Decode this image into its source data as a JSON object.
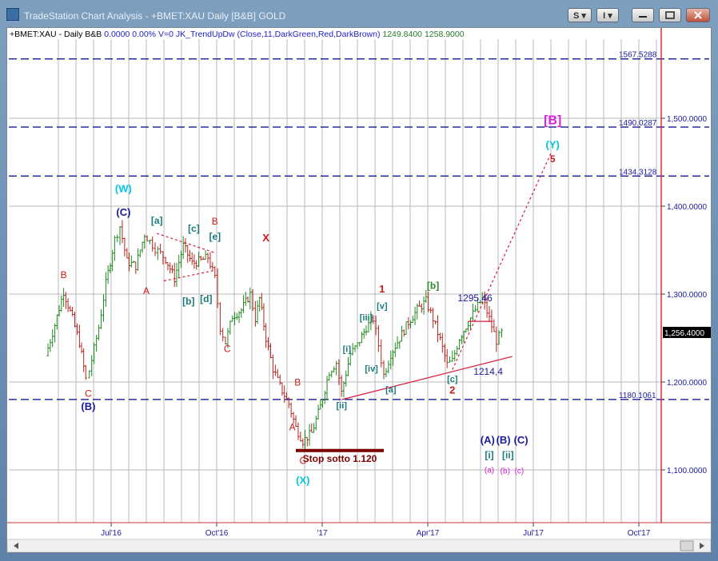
{
  "window": {
    "title": "TradeStation Chart Analysis - +BMET:XAU Daily [B&B] GOLD",
    "buttons": {
      "s_label": "S ▾",
      "i_label": "I ▾"
    }
  },
  "colors": {
    "up_bar": "#1f8a1f",
    "down_bar": "#b3261e",
    "trend_line": "#d81b3a",
    "level_line": "#00008b",
    "grid": "#b9b9b9",
    "axis_text": "#1a1aa0",
    "stop_box": "#7a0000"
  },
  "chart_data": {
    "type": "ohlc",
    "header": {
      "symbol": "+BMET:XAU",
      "interval": "Daily",
      "style": "B&B",
      "net_change": "0.0000",
      "pct_change": "0.00%",
      "volume": "V=0",
      "indicator": "JK_TrendUpDw (Close,11,DarkGreen,Red,DarkBrown)",
      "value1": "1249.8400",
      "value2": "1258.9000"
    },
    "ylim": [
      1040,
      1590
    ],
    "y_ticks": [
      {
        "value": 1100,
        "label": "1,100.0000"
      },
      {
        "value": 1200,
        "label": "1,200.0000"
      },
      {
        "value": 1300,
        "label": "1,300.0000"
      },
      {
        "value": 1400,
        "label": "1,400.0000"
      },
      {
        "value": 1500,
        "label": "1,500.0000"
      }
    ],
    "x_ticks": [
      {
        "month": 6.7,
        "label": "Jul'16"
      },
      {
        "month": 9.7,
        "label": "Oct'16"
      },
      {
        "month": 12.7,
        "label": "'17"
      },
      {
        "month": 15.7,
        "label": "Apr'17"
      },
      {
        "month": 18.7,
        "label": "Jul'17"
      },
      {
        "month": 21.7,
        "label": "Oct'17"
      }
    ],
    "last_price": {
      "value": 1256.4,
      "label": "1,256.4000"
    },
    "levels": [
      {
        "value": 1567.5288,
        "label": "1567.5288"
      },
      {
        "value": 1490.0287,
        "label": "1490.0287"
      },
      {
        "value": 1434.3128,
        "label": "1434.3128"
      },
      {
        "value": 1180.1061,
        "label": "1180.1061"
      }
    ],
    "price_path": [
      [
        4.84,
        1230
      ],
      [
        5.1,
        1265
      ],
      [
        5.35,
        1303
      ],
      [
        5.6,
        1272
      ],
      [
        5.8,
        1245
      ],
      [
        5.98,
        1203
      ],
      [
        6.08,
        1213
      ],
      [
        6.35,
        1262
      ],
      [
        6.55,
        1312
      ],
      [
        6.8,
        1362
      ],
      [
        6.95,
        1377
      ],
      [
        7.15,
        1337
      ],
      [
        7.4,
        1332
      ],
      [
        7.65,
        1368
      ],
      [
        7.95,
        1352
      ],
      [
        8.25,
        1340
      ],
      [
        8.5,
        1318
      ],
      [
        8.75,
        1355
      ],
      [
        9.0,
        1335
      ],
      [
        9.25,
        1338
      ],
      [
        9.45,
        1342
      ],
      [
        9.65,
        1318
      ],
      [
        9.8,
        1262
      ],
      [
        9.95,
        1245
      ],
      [
        10.15,
        1275
      ],
      [
        10.4,
        1282
      ],
      [
        10.65,
        1300
      ],
      [
        10.8,
        1272
      ],
      [
        10.92,
        1295
      ],
      [
        11.1,
        1250
      ],
      [
        11.3,
        1215
      ],
      [
        11.5,
        1195
      ],
      [
        11.75,
        1175
      ],
      [
        11.95,
        1148
      ],
      [
        12.15,
        1133
      ],
      [
        12.4,
        1142
      ],
      [
        12.65,
        1172
      ],
      [
        12.9,
        1212
      ],
      [
        13.1,
        1222
      ],
      [
        13.25,
        1188
      ],
      [
        13.5,
        1232
      ],
      [
        13.7,
        1242
      ],
      [
        13.95,
        1262
      ],
      [
        14.15,
        1272
      ],
      [
        14.3,
        1242
      ],
      [
        14.45,
        1208
      ],
      [
        14.65,
        1232
      ],
      [
        14.9,
        1250
      ],
      [
        15.15,
        1268
      ],
      [
        15.4,
        1282
      ],
      [
        15.65,
        1292
      ],
      [
        15.85,
        1272
      ],
      [
        16.05,
        1248
      ],
      [
        16.25,
        1220
      ],
      [
        16.4,
        1224
      ],
      [
        16.6,
        1250
      ],
      [
        16.85,
        1268
      ],
      [
        17.05,
        1282
      ],
      [
        17.25,
        1295
      ],
      [
        17.45,
        1272
      ],
      [
        17.65,
        1247
      ],
      [
        17.8,
        1256
      ]
    ],
    "trendlines": [
      {
        "kind": "dotted",
        "from": [
          8.0,
          1369
        ],
        "to": [
          9.65,
          1347
        ]
      },
      {
        "kind": "dotted",
        "from": [
          8.2,
          1315
        ],
        "to": [
          9.65,
          1327
        ]
      },
      {
        "kind": "solid",
        "from": [
          13.25,
          1180
        ],
        "to": [
          18.1,
          1229
        ]
      },
      {
        "kind": "dotted",
        "from": [
          16.4,
          1214
        ],
        "to": [
          19.2,
          1460
        ]
      },
      {
        "kind": "solid-short",
        "from": [
          16.85,
          1269
        ],
        "to": [
          17.55,
          1269
        ]
      }
    ],
    "stop_box": {
      "label": "Stop sotto 1.120",
      "x1": 11.95,
      "x2": 14.45,
      "y": 1122
    },
    "price_labels": [
      {
        "text": "1295,46",
        "m": 16.55,
        "y": 1292,
        "color": "#1a1aa0"
      },
      {
        "text": "1214,4",
        "m": 17.0,
        "y": 1208,
        "color": "#1a1aa0"
      }
    ],
    "annotations": [
      {
        "text": "(W)",
        "m": 7.05,
        "y": 1416,
        "color": "#00c8e0",
        "size": 13,
        "bold": true
      },
      {
        "text": "(C)",
        "m": 7.05,
        "y": 1389,
        "color": "#1a1aa0",
        "size": 13,
        "bold": true
      },
      {
        "text": "B",
        "m": 5.35,
        "y": 1318,
        "color": "#d01818",
        "size": 12
      },
      {
        "text": "A",
        "m": 7.7,
        "y": 1300,
        "color": "#d01818",
        "size": 12
      },
      {
        "text": "C",
        "m": 6.05,
        "y": 1183,
        "color": "#d01818",
        "size": 12
      },
      {
        "text": "(B)",
        "m": 6.05,
        "y": 1168,
        "color": "#1a1aa0",
        "size": 13,
        "bold": true
      },
      {
        "text": "[a]",
        "m": 8.0,
        "y": 1380,
        "color": "#1a7a7a",
        "size": 12,
        "bold": true
      },
      {
        "text": "[c]",
        "m": 9.05,
        "y": 1371,
        "color": "#1a7a7a",
        "size": 12,
        "bold": true
      },
      {
        "text": "B",
        "m": 9.65,
        "y": 1379,
        "color": "#d01818",
        "size": 12
      },
      {
        "text": "[e]",
        "m": 9.65,
        "y": 1362,
        "color": "#1a7a7a",
        "size": 12,
        "bold": true
      },
      {
        "text": "[b]",
        "m": 8.9,
        "y": 1288,
        "color": "#1a7a7a",
        "size": 12,
        "bold": true
      },
      {
        "text": "[d]",
        "m": 9.4,
        "y": 1291,
        "color": "#1a7a7a",
        "size": 12,
        "bold": true
      },
      {
        "text": "C",
        "m": 10.0,
        "y": 1234,
        "color": "#d01818",
        "size": 12
      },
      {
        "text": "X",
        "m": 11.1,
        "y": 1360,
        "color": "#d01818",
        "size": 13,
        "bold": true
      },
      {
        "text": "B",
        "m": 12.0,
        "y": 1196,
        "color": "#d01818",
        "size": 12
      },
      {
        "text": "A",
        "m": 11.85,
        "y": 1145,
        "color": "#d01818",
        "size": 12
      },
      {
        "text": "C",
        "m": 12.15,
        "y": 1107,
        "color": "#d01818",
        "size": 12
      },
      {
        "text": "(X)",
        "m": 12.15,
        "y": 1084,
        "color": "#00c8e0",
        "size": 13,
        "bold": true
      },
      {
        "text": "[i]",
        "m": 13.4,
        "y": 1234,
        "color": "#1a7a7a",
        "size": 11,
        "bold": true
      },
      {
        "text": "[ii]",
        "m": 13.25,
        "y": 1170,
        "color": "#1a7a7a",
        "size": 11,
        "bold": true
      },
      {
        "text": "[iii]",
        "m": 13.95,
        "y": 1270,
        "color": "#1a7a7a",
        "size": 11,
        "bold": true
      },
      {
        "text": "[iv]",
        "m": 14.1,
        "y": 1212,
        "color": "#1a7a7a",
        "size": 11,
        "bold": true
      },
      {
        "text": "[v]",
        "m": 14.4,
        "y": 1283,
        "color": "#1a7a7a",
        "size": 11,
        "bold": true
      },
      {
        "text": "1",
        "m": 14.4,
        "y": 1302,
        "color": "#d01818",
        "size": 13,
        "bold": true
      },
      {
        "text": "[a]",
        "m": 14.65,
        "y": 1188,
        "color": "#1a7a7a",
        "size": 11,
        "bold": true
      },
      {
        "text": "[b]",
        "m": 15.85,
        "y": 1306,
        "color": "#2a8a2a",
        "size": 12,
        "bold": true
      },
      {
        "text": "[c]",
        "m": 16.4,
        "y": 1200,
        "color": "#1a7a7a",
        "size": 11,
        "bold": true
      },
      {
        "text": "2",
        "m": 16.4,
        "y": 1187,
        "color": "#d01818",
        "size": 13,
        "bold": true
      },
      {
        "text": "(A)",
        "m": 17.4,
        "y": 1130,
        "color": "#1a1aa0",
        "size": 13,
        "bold": true
      },
      {
        "text": "(B)",
        "m": 17.85,
        "y": 1130,
        "color": "#1a1aa0",
        "size": 13,
        "bold": true
      },
      {
        "text": "(C)",
        "m": 18.35,
        "y": 1130,
        "color": "#1a1aa0",
        "size": 13,
        "bold": true
      },
      {
        "text": "[i]",
        "m": 17.45,
        "y": 1113,
        "color": "#1a7a7a",
        "size": 12,
        "bold": true
      },
      {
        "text": "[ii]",
        "m": 17.98,
        "y": 1113,
        "color": "#1a7a7a",
        "size": 12,
        "bold": true
      },
      {
        "text": "(a)",
        "m": 17.45,
        "y": 1097,
        "color": "#d020d0",
        "size": 10
      },
      {
        "text": "(b)",
        "m": 17.9,
        "y": 1096,
        "color": "#d020d0",
        "size": 10
      },
      {
        "text": "(c)",
        "m": 18.3,
        "y": 1096,
        "color": "#d020d0",
        "size": 10
      },
      {
        "text": "[B]",
        "m": 19.25,
        "y": 1493,
        "color": "#e020e0",
        "size": 16,
        "bold": true
      },
      {
        "text": "(Y)",
        "m": 19.25,
        "y": 1466,
        "color": "#00c8e0",
        "size": 13,
        "bold": true
      },
      {
        "text": "5",
        "m": 19.25,
        "y": 1450,
        "color": "#d01818",
        "size": 12,
        "bold": true
      }
    ]
  }
}
